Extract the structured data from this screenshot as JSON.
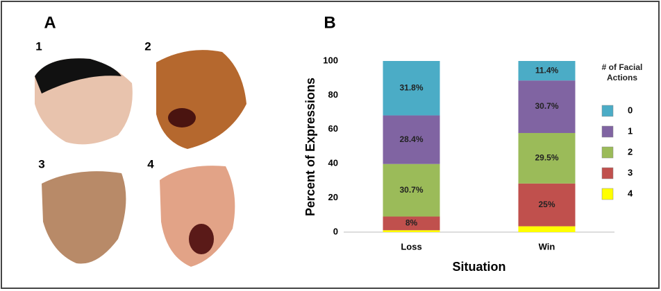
{
  "panels": {
    "a": "A",
    "b": "B",
    "faces": [
      "1",
      "2",
      "3",
      "4"
    ]
  },
  "chart_data": {
    "type": "stacked_bar",
    "x_label": "Situation",
    "y_label": "Percent of Expressions",
    "legend_title": "# of Facial Actions",
    "categories": [
      "Loss",
      "Win"
    ],
    "series": [
      {
        "name": "0",
        "color": "#4bacc6",
        "values": [
          31.8,
          11.4
        ],
        "value_labels": [
          "31.8%",
          "11.4%"
        ]
      },
      {
        "name": "1",
        "color": "#8064a2",
        "values": [
          28.4,
          30.7
        ],
        "value_labels": [
          "28.4%",
          "30.7%"
        ]
      },
      {
        "name": "2",
        "color": "#9bbb59",
        "values": [
          30.7,
          29.5
        ],
        "value_labels": [
          "30.7%",
          "29.5%"
        ]
      },
      {
        "name": "3",
        "color": "#c0504d",
        "values": [
          8,
          25
        ],
        "value_labels": [
          "8%",
          "25%"
        ]
      },
      {
        "name": "4",
        "color": "#ffff00",
        "values": [
          1.1,
          3.4
        ]
      }
    ],
    "ylim": [
      0,
      100
    ],
    "yticks": [
      0,
      20,
      40,
      60,
      80,
      100
    ],
    "legend": "right"
  }
}
